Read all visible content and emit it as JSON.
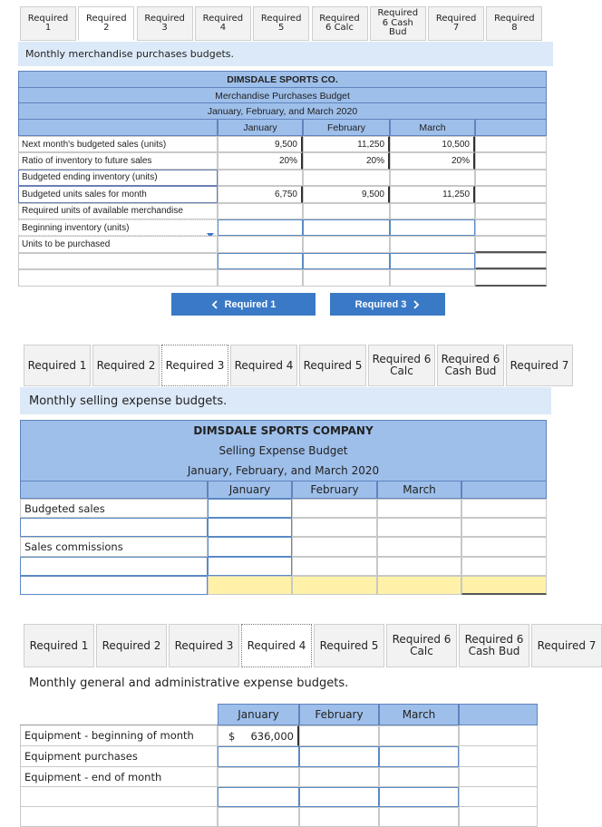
{
  "section1": {
    "tabs": [
      "Required 1",
      "Required 2",
      "Required 3",
      "Required 4",
      "Required 5",
      "Required 6 Calc",
      "Required 6 Cash Bud",
      "Required 7",
      "Required 8"
    ],
    "active_tab": 1,
    "heading": "Monthly merchandise purchases budgets.",
    "table": {
      "title_lines": [
        "DIMSDALE SPORTS CO.",
        "Merchandise Purchases Budget",
        "January, February, and March 2020"
      ],
      "columns": [
        "January",
        "February",
        "March"
      ],
      "rows": [
        {
          "label": "Next month's budgeted sales (units)",
          "cells": [
            "9,500",
            "11,250",
            "10,500"
          ]
        },
        {
          "label": "Ratio of inventory to future sales",
          "cells": [
            "20%",
            "20%",
            "20%"
          ]
        },
        {
          "label": "Budgeted ending inventory (units)",
          "cells": [
            null,
            null,
            null
          ]
        },
        {
          "label": "Budgeted units sales for month",
          "cells": [
            "6,750",
            "9,500",
            "11,250"
          ]
        },
        {
          "label": "Required units of available merchandise",
          "cells": [
            null,
            null,
            null
          ]
        },
        {
          "label": "Beginning inventory (units)",
          "cells": [
            null,
            null,
            null
          ]
        },
        {
          "label": "Units to be purchased",
          "cells": [
            null,
            null,
            null
          ]
        },
        {
          "label": null,
          "cells": [
            null,
            null,
            null
          ]
        },
        {
          "label": null,
          "cells": [
            null,
            null,
            null
          ]
        }
      ]
    },
    "buttons": [
      "Required 1",
      "Required 3"
    ]
  },
  "section2": {
    "tabs": [
      "Required 1",
      "Required 2",
      "Required 3",
      "Required 4",
      "Required 5",
      "Required 6 Calc",
      "Required 6 Cash Bud",
      "Required 7"
    ],
    "active_tab": 2,
    "heading": "Monthly selling expense budgets.",
    "table": {
      "title_lines": [
        "DIMSDALE SPORTS COMPANY",
        "Selling Expense Budget",
        "January, February, and March 2020"
      ],
      "columns": [
        "January",
        "February",
        "March"
      ],
      "rows": [
        {
          "label": "Budgeted sales",
          "cells": [
            null,
            null,
            null
          ]
        },
        {
          "label": null,
          "cells": [
            null,
            null,
            null
          ]
        },
        {
          "label": "Sales commissions",
          "cells": [
            null,
            null,
            null
          ]
        },
        {
          "label": null,
          "cells": [
            null,
            null,
            null
          ]
        },
        {
          "label": null,
          "cells": [
            null,
            null,
            null
          ]
        }
      ]
    }
  },
  "section3": {
    "tabs": [
      "Required 1",
      "Required 2",
      "Required 3",
      "Required 4",
      "Required 5",
      "Required 6 Calc",
      "Required 6 Cash Bud",
      "Required 7"
    ],
    "active_tab": 3,
    "heading": "Monthly general and administrative expense budgets.",
    "table": {
      "columns": [
        "January",
        "February",
        "March"
      ],
      "rows": [
        {
          "label": "Equipment - beginning of month",
          "symbol": "$",
          "cells": [
            "636,000",
            null,
            null
          ]
        },
        {
          "label": "Equipment purchases",
          "cells": [
            null,
            null,
            null
          ]
        },
        {
          "label": "Equipment - end of month",
          "cells": [
            null,
            null,
            null
          ]
        },
        {
          "label": null,
          "cells": [
            null,
            null,
            null
          ]
        },
        {
          "label": null,
          "cells": [
            null,
            null,
            null
          ]
        }
      ]
    }
  }
}
